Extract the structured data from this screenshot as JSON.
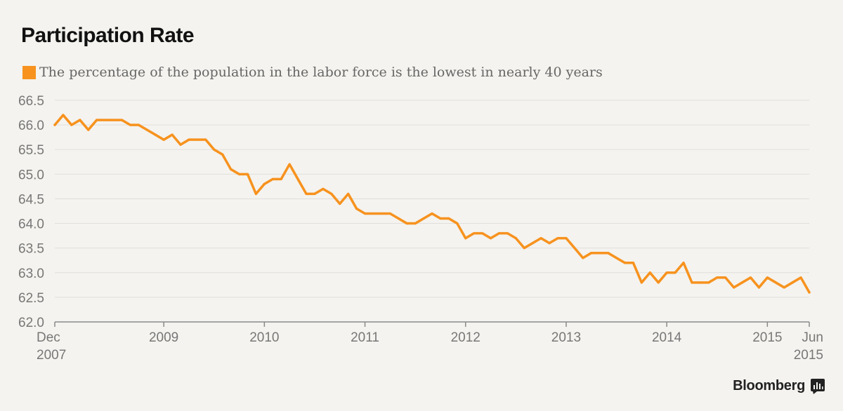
{
  "header": {
    "title": "Participation Rate",
    "legend_label": "The percentage of the population in the labor force is the lowest in nearly 40 years"
  },
  "brand": {
    "name": "Bloomberg",
    "icon": "bloomberg-terminal-icon"
  },
  "colors": {
    "series": "#f7921e",
    "background": "#f4f3ef",
    "grid": "#e0dfdb",
    "text": "#777777"
  },
  "chart_data": {
    "type": "line",
    "ylim": [
      62.0,
      66.5
    ],
    "yticks": [
      "62.0",
      "62.5",
      "63.0",
      "63.5",
      "64.0",
      "64.5",
      "65.0",
      "65.5",
      "66.0",
      "66.5"
    ],
    "xlim": [
      "2007-12",
      "2015-06"
    ],
    "xticks": [
      {
        "date": "2007-12",
        "lines": [
          "Dec",
          "2007"
        ]
      },
      {
        "date": "2009-01",
        "lines": [
          "2009"
        ]
      },
      {
        "date": "2010-01",
        "lines": [
          "2010"
        ]
      },
      {
        "date": "2011-01",
        "lines": [
          "2011"
        ]
      },
      {
        "date": "2012-01",
        "lines": [
          "2012"
        ]
      },
      {
        "date": "2013-01",
        "lines": [
          "2013"
        ]
      },
      {
        "date": "2014-01",
        "lines": [
          "2014"
        ]
      },
      {
        "date": "2015-01",
        "lines": [
          "2015"
        ]
      },
      {
        "date": "2015-06",
        "lines": [
          "Jun",
          "2015"
        ]
      }
    ],
    "grid": true,
    "legend": "top-left",
    "series": [
      {
        "name": "The percentage of the population in the labor force is the lowest in nearly 40 years",
        "start": "2007-12",
        "frequency": "monthly",
        "values": [
          66.0,
          66.2,
          66.0,
          66.1,
          65.9,
          66.1,
          66.1,
          66.1,
          66.1,
          66.0,
          66.0,
          65.9,
          65.8,
          65.7,
          65.8,
          65.6,
          65.7,
          65.7,
          65.7,
          65.5,
          65.4,
          65.1,
          65.0,
          65.0,
          64.6,
          64.8,
          64.9,
          64.9,
          65.2,
          64.9,
          64.6,
          64.6,
          64.7,
          64.6,
          64.4,
          64.6,
          64.3,
          64.2,
          64.2,
          64.2,
          64.2,
          64.1,
          64.0,
          64.0,
          64.1,
          64.2,
          64.1,
          64.1,
          64.0,
          63.7,
          63.8,
          63.8,
          63.7,
          63.8,
          63.8,
          63.7,
          63.5,
          63.6,
          63.7,
          63.6,
          63.7,
          63.7,
          63.5,
          63.3,
          63.4,
          63.4,
          63.4,
          63.3,
          63.2,
          63.2,
          62.8,
          63.0,
          62.8,
          63.0,
          63.0,
          63.2,
          62.8,
          62.8,
          62.8,
          62.9,
          62.9,
          62.7,
          62.8,
          62.9,
          62.7,
          62.9,
          62.8,
          62.7,
          62.8,
          62.9,
          62.6
        ]
      }
    ]
  }
}
